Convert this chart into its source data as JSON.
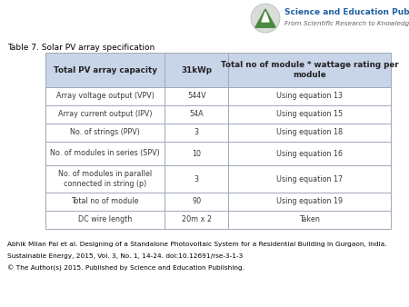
{
  "title": "Table 7. Solar PV array specification",
  "header_col1": "Total PV array capacity",
  "header_col2": "31kWp",
  "header_col3": "Total no of module * wattage rating per\nmodule",
  "rows": [
    [
      "Array voltage output (VPV)",
      "544V",
      "Using equation 13"
    ],
    [
      "Array current output (IPV)",
      "54A",
      "Using equation 15"
    ],
    [
      "No. of strings (PPV)",
      "3",
      "Using equation 18"
    ],
    [
      "No. of modules in series (SPV)",
      "10",
      "Using equation 16"
    ],
    [
      "No. of modules in parallel\nconnected in string (p)",
      "3",
      "Using equation 17"
    ],
    [
      "Total no of module",
      "90",
      "Using equation 19"
    ],
    [
      "DC wire length",
      "20m x 2",
      "Taken"
    ]
  ],
  "header_bg": "#c8d4e8",
  "row_bg_alt": "#f0f3f8",
  "row_bg_white": "#ffffff",
  "border_color": "#a0a8b8",
  "text_color": "#3a3a3a",
  "header_text_color": "#222222",
  "footer_line1": "Abhik Milan Pal et al. Designing of a Standalone Photovoltaic System for a Residential Building in Gurgaon, India.",
  "footer_line2": "Sustainable Energy, 2015, Vol. 3, No. 1, 14-24. doi:10.12691/rse-3-1-3",
  "footer_line3": "© The Author(s) 2015. Published by Science and Education Publishing.",
  "logo_text_line1": "Science and Education Publishing",
  "logo_text_line2": "From Scientific Research to Knowledge",
  "logo_green": "#4a8a3f",
  "logo_circle_color": "#d8ddd8",
  "logo_title_color": "#2060a0",
  "logo_subtitle_color": "#606060"
}
